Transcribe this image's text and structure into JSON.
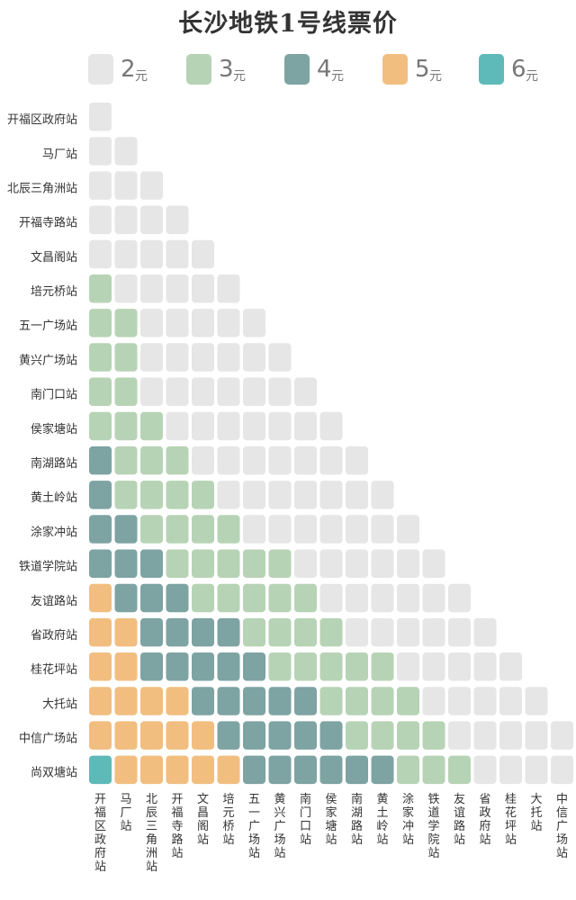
{
  "chart_data": {
    "type": "heatmap",
    "title": "长沙地铁1号线票价",
    "legend": [
      {
        "value": "2",
        "unit": "元",
        "color": "#e6e6e6"
      },
      {
        "value": "3",
        "unit": "元",
        "color": "#b7d3b5"
      },
      {
        "value": "4",
        "unit": "元",
        "color": "#7ea3a3"
      },
      {
        "value": "5",
        "unit": "元",
        "color": "#f1be80"
      },
      {
        "value": "6",
        "unit": "元",
        "color": "#5dbab8"
      }
    ],
    "stations": [
      "开福区政府站",
      "马厂站",
      "北辰三角洲站",
      "开福寺路站",
      "文昌阁站",
      "培元桥站",
      "五一广场站",
      "黄兴广场站",
      "南门口站",
      "侯家塘站",
      "南湖路站",
      "黄土岭站",
      "涂家冲站",
      "铁道学院站",
      "友谊路站",
      "省政府站",
      "桂花坪站",
      "大托站",
      "中信广场站",
      "尚双塘站"
    ],
    "fares": [
      [
        2
      ],
      [
        2,
        2
      ],
      [
        2,
        2,
        2
      ],
      [
        2,
        2,
        2,
        2
      ],
      [
        2,
        2,
        2,
        2,
        2
      ],
      [
        3,
        2,
        2,
        2,
        2,
        2
      ],
      [
        3,
        3,
        2,
        2,
        2,
        2,
        2
      ],
      [
        3,
        3,
        2,
        2,
        2,
        2,
        2,
        2
      ],
      [
        3,
        3,
        2,
        2,
        2,
        2,
        2,
        2,
        2
      ],
      [
        3,
        3,
        3,
        2,
        2,
        2,
        2,
        2,
        2,
        2
      ],
      [
        4,
        3,
        3,
        3,
        2,
        2,
        2,
        2,
        2,
        2,
        2
      ],
      [
        4,
        3,
        3,
        3,
        3,
        2,
        2,
        2,
        2,
        2,
        2,
        2
      ],
      [
        4,
        4,
        3,
        3,
        3,
        3,
        2,
        2,
        2,
        2,
        2,
        2,
        2
      ],
      [
        4,
        4,
        4,
        3,
        3,
        3,
        3,
        3,
        2,
        2,
        2,
        2,
        2,
        2
      ],
      [
        5,
        4,
        4,
        4,
        3,
        3,
        3,
        3,
        3,
        2,
        2,
        2,
        2,
        2,
        2
      ],
      [
        5,
        5,
        4,
        4,
        4,
        4,
        3,
        3,
        3,
        3,
        2,
        2,
        2,
        2,
        2,
        2
      ],
      [
        5,
        5,
        4,
        4,
        4,
        4,
        4,
        3,
        3,
        3,
        3,
        3,
        2,
        2,
        2,
        2,
        2
      ],
      [
        5,
        5,
        5,
        5,
        4,
        4,
        4,
        4,
        4,
        3,
        3,
        3,
        3,
        2,
        2,
        2,
        2,
        2
      ],
      [
        5,
        5,
        5,
        5,
        5,
        4,
        4,
        4,
        4,
        4,
        3,
        3,
        3,
        3,
        2,
        2,
        2,
        2,
        2
      ],
      [
        6,
        5,
        5,
        5,
        5,
        5,
        4,
        4,
        4,
        4,
        4,
        4,
        3,
        3,
        3,
        2,
        2,
        2,
        2,
        2
      ]
    ]
  }
}
